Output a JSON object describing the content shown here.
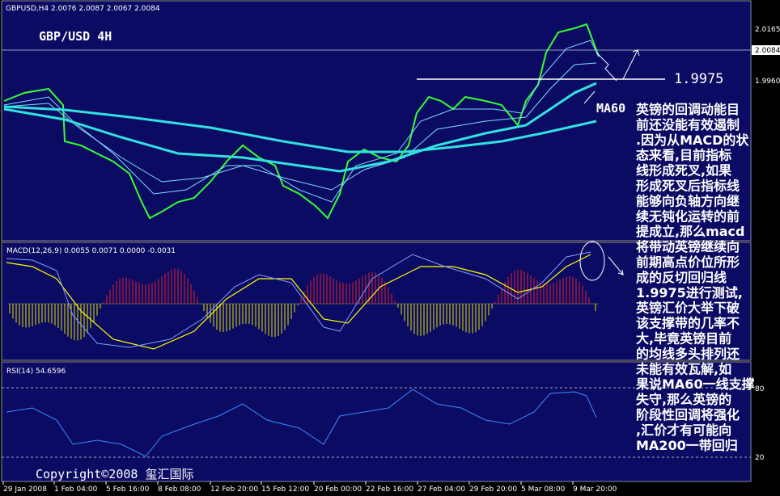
{
  "header": {
    "symbol_line": "GBPUSD,H4  2.0076 2.0087 2.0067 2.0084",
    "title": "GBP/USD 4H"
  },
  "price_axis": {
    "labels": [
      "2.0165",
      "2.0084",
      "1.9960"
    ]
  },
  "annotations": {
    "level": "1.9975",
    "ma60": "MA60",
    "copyright": "Copyright©2008 玺汇国际"
  },
  "macd": {
    "header": "MACD(12,26,9) 0.0055 0.0071 0.0000 -0.0031"
  },
  "rsi": {
    "header": "RSI(14) 54.6596",
    "levels": [
      "80",
      "20"
    ]
  },
  "time_axis": {
    "labels": [
      "29 Jan 2008",
      "1 Feb 04:00",
      "5 Feb 16:00",
      "8 Feb 08:00",
      "12 Feb 20:00",
      "15 Feb 12:00",
      "20 Feb 00:00",
      "22 Feb 16:00",
      "27 Feb 04:00",
      "29 Feb 20:00",
      "5 Mar 08:00",
      "9 Mar 20:00"
    ]
  },
  "commentary": {
    "lines": [
      "英镑的回调动能目",
      "前还没能有效遏制",
      ".因为从MACD的状",
      "态来看,目前指标",
      "线形成死叉,如果",
      "形成死叉后指标线",
      "能够向负轴方向继",
      "续无钝化运转的前",
      "提成立,那么macd",
      "将带动英镑继续向",
      "前期高点价位所形",
      "成的反切回归线",
      "1.9975进行测试,",
      "英镑汇价大举下破",
      "该支撑带的几率不",
      "大,毕竟英镑目前",
      "的均线多头排列还",
      "未能有效瓦解,如",
      "果说MA60一线支撑",
      "失守,那么英镑的",
      "阶段性回调将强化",
      ",汇价才有可能向",
      "MA200一带回归"
    ]
  }
}
